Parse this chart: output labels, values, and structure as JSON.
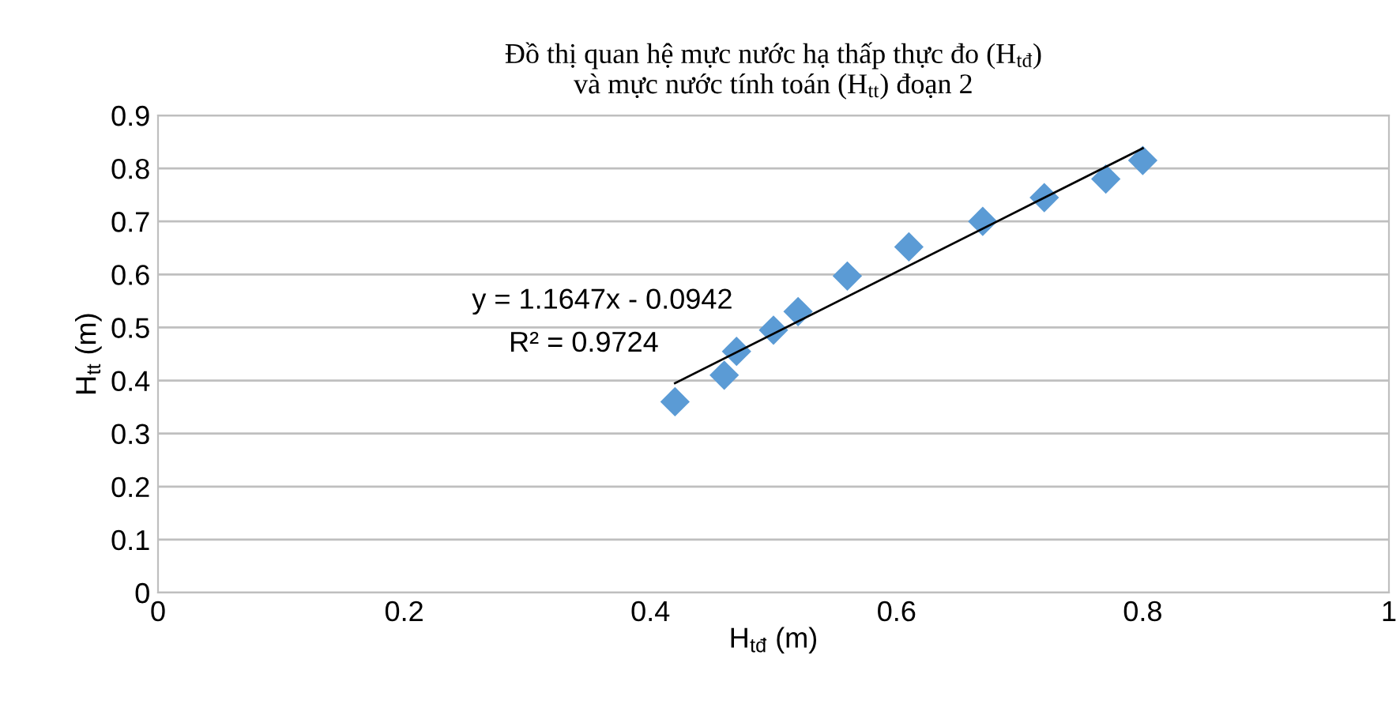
{
  "chart_data": {
    "type": "scatter",
    "title": "Đồ thị quan hệ mực nước hạ thấp thực đo (H$_{tđ}$)\nvà mực nước tính toán (H$_{tt}$) đoạn 2",
    "xlabel": "H$_{tđ}$ (m)",
    "ylabel": "H$_{tt}$ (m)",
    "xlim": [
      0,
      1
    ],
    "xticks": [
      0,
      0.2,
      0.4,
      0.6,
      0.8,
      1
    ],
    "ylim": [
      0,
      0.9
    ],
    "yticks": [
      0,
      0.1,
      0.2,
      0.3,
      0.4,
      0.5,
      0.6,
      0.7,
      0.8,
      0.9
    ],
    "grid": "y",
    "marker": "diamond",
    "series": [
      {
        "color": "#5b9bd5",
        "x": [
          0.42,
          0.46,
          0.47,
          0.5,
          0.52,
          0.56,
          0.61,
          0.67,
          0.72,
          0.77,
          0.8
        ],
        "values": [
          0.36,
          0.41,
          0.455,
          0.495,
          0.53,
          0.597,
          0.652,
          0.7,
          0.745,
          0.78,
          0.815
        ]
      },
      {
        "type": "line",
        "marker": "none",
        "color": "#000000",
        "x": [
          0.42,
          0.8
        ],
        "values": [
          0.395,
          0.838
        ]
      }
    ],
    "annotations": [
      "y = 1.1647x - 0.0942",
      "R² = 0.9724"
    ]
  }
}
